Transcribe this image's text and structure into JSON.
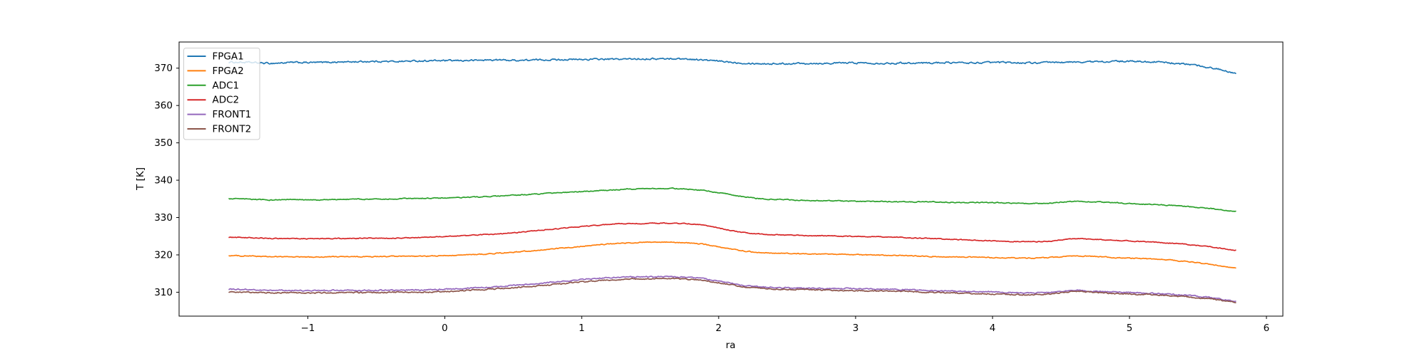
{
  "chart_data": {
    "type": "line",
    "title": "",
    "xlabel": "ra",
    "ylabel": "T [K]",
    "xlim": [
      -1.94,
      6.12
    ],
    "ylim": [
      303.6,
      377.0
    ],
    "x_ticks": [
      -1,
      0,
      1,
      2,
      3,
      4,
      5,
      6
    ],
    "y_ticks": [
      310,
      320,
      330,
      340,
      350,
      360,
      370
    ],
    "grid": false,
    "legend_position": "upper left",
    "legend_border_color": "#cccccc",
    "axis_color": "#000000",
    "x_start": -1.575,
    "x_step": 0.15,
    "series": [
      {
        "name": "FPGA1",
        "color": "#1f77b4",
        "noise": 0.18,
        "values": [
          371.6,
          371.5,
          371.3,
          371.5,
          371.5,
          371.6,
          371.7,
          371.8,
          371.8,
          371.9,
          372.0,
          372.0,
          372.1,
          372.2,
          372.1,
          372.2,
          372.3,
          372.3,
          372.4,
          372.4,
          372.5,
          372.5,
          372.5,
          372.2,
          371.8,
          371.4,
          371.2,
          371.2,
          371.3,
          371.3,
          371.4,
          371.4,
          371.3,
          371.4,
          371.4,
          371.5,
          371.4,
          371.5,
          371.5,
          371.4,
          371.5,
          371.6,
          371.7,
          371.8,
          371.8,
          371.7,
          371.3,
          370.8,
          369.9,
          368.8
        ]
      },
      {
        "name": "FPGA2",
        "color": "#ff7f0e",
        "noise": 0.1,
        "values": [
          319.8,
          319.7,
          319.5,
          319.5,
          319.4,
          319.5,
          319.5,
          319.5,
          319.6,
          319.6,
          319.7,
          319.9,
          320.1,
          320.4,
          320.8,
          321.2,
          321.7,
          322.2,
          322.7,
          323.1,
          323.3,
          323.4,
          323.3,
          322.9,
          322.0,
          321.1,
          320.6,
          320.4,
          320.3,
          320.2,
          320.1,
          320.0,
          319.9,
          319.8,
          319.6,
          319.5,
          319.4,
          319.3,
          319.2,
          319.1,
          319.3,
          319.7,
          319.6,
          319.3,
          319.1,
          318.9,
          318.5,
          318.0,
          317.3,
          316.5
        ]
      },
      {
        "name": "ADC1",
        "color": "#2ca02c",
        "noise": 0.1,
        "values": [
          335.0,
          334.9,
          334.7,
          334.8,
          334.7,
          334.8,
          334.9,
          334.9,
          335.0,
          335.1,
          335.2,
          335.3,
          335.5,
          335.7,
          336.0,
          336.3,
          336.6,
          336.9,
          337.2,
          337.5,
          337.7,
          337.8,
          337.7,
          337.3,
          336.5,
          335.6,
          335.0,
          334.8,
          334.6,
          334.5,
          334.4,
          334.3,
          334.3,
          334.2,
          334.2,
          334.1,
          334.0,
          334.0,
          333.9,
          333.8,
          333.9,
          334.3,
          334.2,
          334.0,
          333.7,
          333.5,
          333.2,
          332.8,
          332.3,
          331.6
        ]
      },
      {
        "name": "ADC2",
        "color": "#d62728",
        "noise": 0.09,
        "values": [
          324.7,
          324.6,
          324.4,
          324.4,
          324.3,
          324.4,
          324.4,
          324.5,
          324.5,
          324.6,
          324.8,
          325.0,
          325.3,
          325.6,
          326.0,
          326.5,
          327.0,
          327.5,
          328.0,
          328.3,
          328.4,
          328.5,
          328.4,
          328.0,
          327.0,
          326.0,
          325.5,
          325.3,
          325.2,
          325.1,
          325.0,
          324.9,
          324.8,
          324.6,
          324.4,
          324.2,
          324.0,
          323.8,
          323.6,
          323.5,
          323.7,
          324.3,
          324.2,
          323.9,
          323.7,
          323.4,
          323.1,
          322.6,
          322.0,
          321.3
        ]
      },
      {
        "name": "FRONT1",
        "color": "#9467bd",
        "noise": 0.13,
        "values": [
          310.8,
          310.7,
          310.5,
          310.5,
          310.4,
          310.5,
          310.5,
          310.5,
          310.6,
          310.6,
          310.7,
          310.9,
          311.2,
          311.5,
          311.9,
          312.3,
          312.8,
          313.3,
          313.7,
          314.0,
          314.1,
          314.2,
          314.1,
          313.7,
          312.8,
          311.9,
          311.4,
          311.2,
          311.1,
          311.0,
          311.0,
          310.9,
          310.8,
          310.7,
          310.5,
          310.4,
          310.2,
          310.1,
          309.9,
          309.8,
          310.0,
          310.5,
          310.3,
          310.1,
          309.9,
          309.7,
          309.4,
          309.0,
          308.4,
          307.6
        ]
      },
      {
        "name": "FRONT2",
        "color": "#8c564b",
        "noise": 0.13,
        "values": [
          310.1,
          310.0,
          309.9,
          309.9,
          309.8,
          309.9,
          309.9,
          309.9,
          310.0,
          310.0,
          310.1,
          310.3,
          310.6,
          310.9,
          311.3,
          311.7,
          312.2,
          312.7,
          313.1,
          313.4,
          313.6,
          313.6,
          313.6,
          313.2,
          312.4,
          311.5,
          311.0,
          310.8,
          310.7,
          310.6,
          310.5,
          310.4,
          310.3,
          310.2,
          310.0,
          309.9,
          309.7,
          309.6,
          309.4,
          309.3,
          309.6,
          310.2,
          310.0,
          309.7,
          309.5,
          309.3,
          309.0,
          308.6,
          308.1,
          307.3
        ]
      }
    ]
  }
}
